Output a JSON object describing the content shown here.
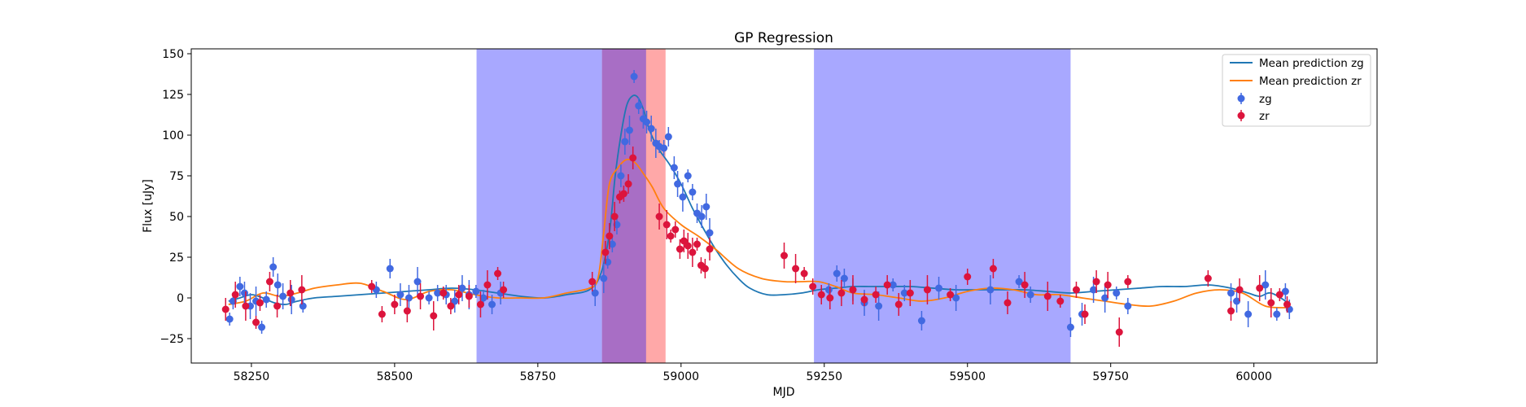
{
  "chart_data": {
    "type": "scatter",
    "title": "GP Regression",
    "xlabel": "MJD",
    "ylabel": "Flux [uJy]",
    "xlim": [
      58145,
      60215
    ],
    "ylim": [
      -40,
      153
    ],
    "xticks": [
      58250,
      58500,
      58750,
      59000,
      59250,
      59500,
      59750,
      60000
    ],
    "yticks": [
      -25,
      0,
      25,
      50,
      75,
      100,
      125,
      150
    ],
    "grid": false,
    "legend_position": "top-right",
    "shaded_regions": [
      {
        "x0": 58643,
        "x1": 58862,
        "color": "#0000ff",
        "opacity": 0.34
      },
      {
        "x0": 58862,
        "x1": 58939,
        "color": "#ff0000",
        "opacity": 0.34
      },
      {
        "x0": 58862,
        "x1": 58939,
        "color": "#0000ff",
        "opacity": 0.34
      },
      {
        "x0": 58939,
        "x1": 58973,
        "color": "#ff0000",
        "opacity": 0.34
      },
      {
        "x0": 59232,
        "x1": 59680,
        "color": "#0000ff",
        "opacity": 0.34
      }
    ],
    "series": [
      {
        "name": "Mean prediction zg",
        "kind": "line",
        "color": "#1f77b4",
        "x": [
          58210,
          58230,
          58250,
          58270,
          58290,
          58310,
          58330,
          58360,
          58400,
          58440,
          58480,
          58520,
          58560,
          58600,
          58640,
          58680,
          58720,
          58760,
          58800,
          58840,
          58860,
          58875,
          58885,
          58895,
          58905,
          58915,
          58925,
          58935,
          58945,
          58960,
          58980,
          59000,
          59020,
          59040,
          59060,
          59080,
          59100,
          59120,
          59150,
          59180,
          59210,
          59240,
          59270,
          59300,
          59330,
          59360,
          59400,
          59440,
          59480,
          59520,
          59560,
          59600,
          59640,
          59680,
          59720,
          59760,
          59800,
          59840,
          59880,
          59920,
          59960,
          59990,
          60010,
          60030,
          60060
        ],
        "y": [
          -2,
          0,
          2,
          0,
          -3,
          -4,
          -2,
          0,
          1,
          2,
          3,
          4,
          5,
          6,
          5,
          3,
          1,
          0,
          2,
          5,
          15,
          40,
          75,
          100,
          118,
          124,
          123,
          115,
          103,
          92,
          82,
          70,
          55,
          42,
          30,
          20,
          12,
          6,
          2,
          2,
          3,
          5,
          6,
          7,
          7,
          7,
          7,
          6,
          5,
          5,
          5,
          5,
          4,
          3,
          4,
          5,
          6,
          7,
          7,
          8,
          6,
          3,
          1,
          3,
          -3
        ]
      },
      {
        "name": "Mean prediction zr",
        "kind": "line",
        "color": "#ff7f0e",
        "x": [
          58210,
          58240,
          58270,
          58300,
          58330,
          58360,
          58400,
          58440,
          58480,
          58520,
          58560,
          58600,
          58640,
          58680,
          58720,
          58760,
          58800,
          58840,
          58855,
          58865,
          58875,
          58890,
          58905,
          58920,
          58935,
          58950,
          58970,
          59000,
          59030,
          59060,
          59100,
          59140,
          59180,
          59210,
          59240,
          59270,
          59300,
          59340,
          59380,
          59420,
          59460,
          59500,
          59540,
          59580,
          59620,
          59660,
          59700,
          59740,
          59780,
          59820,
          59860,
          59900,
          59940,
          59980,
          60020,
          60060
        ],
        "y": [
          -4,
          -2,
          3,
          1,
          3,
          6,
          8,
          9,
          4,
          -1,
          4,
          5,
          2,
          0,
          0,
          0,
          3,
          6,
          12,
          40,
          70,
          80,
          85,
          83,
          76,
          68,
          55,
          45,
          38,
          30,
          18,
          12,
          10,
          10,
          10,
          7,
          3,
          2,
          0,
          -2,
          0,
          4,
          6,
          5,
          2,
          2,
          0,
          -2,
          -4,
          -5,
          -2,
          3,
          5,
          3,
          -5,
          -6
        ]
      },
      {
        "name": "zg",
        "kind": "errorbar",
        "color": "#4169e1",
        "x": [
          58212,
          58218,
          58230,
          58238,
          58248,
          58258,
          58268,
          58276,
          58288,
          58296,
          58305,
          58320,
          58340,
          58468,
          58492,
          58510,
          58525,
          58540,
          58560,
          58575,
          58590,
          58605,
          58618,
          58630,
          58642,
          58655,
          58670,
          58685,
          58850,
          58865,
          58872,
          58880,
          58888,
          58895,
          58902,
          58910,
          58918,
          58926,
          58934,
          58940,
          58948,
          58956,
          58962,
          58970,
          58978,
          58988,
          58994,
          59003,
          59012,
          59020,
          59028,
          59036,
          59044,
          59050,
          59258,
          59272,
          59285,
          59300,
          59320,
          59345,
          59370,
          59390,
          59420,
          59450,
          59480,
          59540,
          59590,
          59610,
          59680,
          59700,
          59720,
          59740,
          59760,
          59780,
          59960,
          59970,
          59990,
          60020,
          60040,
          60055,
          60062
        ],
        "y": [
          -13,
          -2,
          7,
          3,
          -5,
          -2,
          -18,
          -1,
          19,
          8,
          1,
          -1,
          -5,
          5,
          18,
          2,
          0,
          10,
          0,
          3,
          2,
          -2,
          6,
          2,
          4,
          0,
          -4,
          3,
          3,
          12,
          22,
          33,
          45,
          75,
          96,
          103,
          136,
          118,
          110,
          108,
          104,
          95,
          93,
          92,
          99,
          80,
          70,
          62,
          75,
          65,
          52,
          50,
          56,
          40,
          5,
          15,
          12,
          5,
          -3,
          -5,
          8,
          3,
          -14,
          6,
          0,
          5,
          10,
          2,
          -18,
          -10,
          5,
          0,
          3,
          -5,
          3,
          -2,
          -10,
          8,
          -10,
          4,
          -7
        ]
      },
      {
        "name": "zr",
        "kind": "errorbar",
        "color": "#dc143c",
        "x": [
          58205,
          58222,
          58240,
          58258,
          58265,
          58282,
          58295,
          58318,
          58338,
          58460,
          58478,
          58500,
          58522,
          58545,
          58568,
          58585,
          58598,
          58612,
          58630,
          58650,
          58662,
          58680,
          58690,
          58845,
          58868,
          58875,
          58884,
          58893,
          58900,
          58908,
          58916,
          58962,
          58975,
          58982,
          58990,
          58998,
          59005,
          59012,
          59020,
          59028,
          59035,
          59042,
          59050,
          59180,
          59200,
          59215,
          59230,
          59245,
          59260,
          59280,
          59300,
          59320,
          59340,
          59360,
          59380,
          59400,
          59430,
          59470,
          59500,
          59545,
          59570,
          59600,
          59640,
          59662,
          59690,
          59705,
          59725,
          59745,
          59765,
          59780,
          59920,
          59960,
          59975,
          60010,
          60030,
          60045,
          60058
        ],
        "y": [
          -7,
          2,
          -5,
          -15,
          -3,
          10,
          -5,
          3,
          5,
          7,
          -10,
          -4,
          -8,
          1,
          -11,
          3,
          -5,
          2,
          1,
          -4,
          8,
          15,
          5,
          10,
          28,
          38,
          50,
          62,
          64,
          70,
          86,
          50,
          45,
          38,
          42,
          30,
          35,
          32,
          28,
          33,
          20,
          18,
          30,
          26,
          18,
          15,
          7,
          2,
          0,
          3,
          5,
          -1,
          2,
          8,
          -4,
          3,
          5,
          2,
          13,
          18,
          -3,
          8,
          1,
          -2,
          5,
          -10,
          10,
          8,
          -21,
          10,
          12,
          -8,
          5,
          6,
          -3,
          2,
          -4
        ],
        "err_scale": 1
      }
    ]
  }
}
